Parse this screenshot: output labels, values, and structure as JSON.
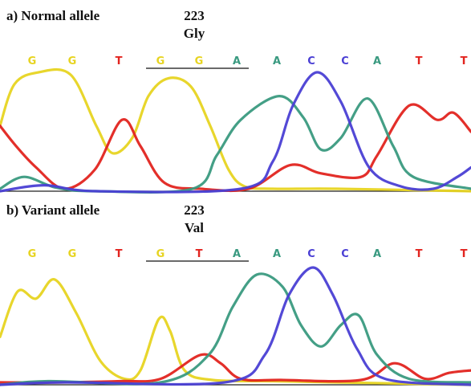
{
  "chart_data": [
    {
      "type": "line",
      "title": "a) Normal allele",
      "codon_position": "223",
      "amino_acid": "Gly",
      "bases": [
        "G",
        "G",
        "T",
        "G",
        "G",
        "A",
        "A",
        "C",
        "C",
        "A",
        "T",
        "T"
      ],
      "underlined_bases": [
        3,
        4
      ],
      "base_colors": {
        "A": "#3a9a80",
        "C": "#4a3fd4",
        "G": "#e7d421",
        "T": "#e2241f"
      },
      "series": [
        {
          "base": "G",
          "color": "#e7d421",
          "values": [
            [
              0,
              0.55
            ],
            [
              18,
              0.9
            ],
            [
              48,
              1.0
            ],
            [
              88,
              0.98
            ],
            [
              120,
              0.55
            ],
            [
              140,
              0.32
            ],
            [
              165,
              0.45
            ],
            [
              185,
              0.8
            ],
            [
              210,
              0.95
            ],
            [
              238,
              0.88
            ],
            [
              262,
              0.55
            ],
            [
              285,
              0.18
            ],
            [
              305,
              0.04
            ],
            [
              340,
              0.02
            ],
            [
              420,
              0.02
            ],
            [
              587,
              0.0
            ]
          ]
        },
        {
          "base": "T",
          "color": "#e2241f",
          "values": [
            [
              0,
              0.55
            ],
            [
              20,
              0.38
            ],
            [
              45,
              0.2
            ],
            [
              80,
              0.02
            ],
            [
              118,
              0.18
            ],
            [
              152,
              0.6
            ],
            [
              175,
              0.38
            ],
            [
              205,
              0.07
            ],
            [
              250,
              0.02
            ],
            [
              310,
              0.02
            ],
            [
              362,
              0.22
            ],
            [
              400,
              0.15
            ],
            [
              450,
              0.12
            ],
            [
              470,
              0.3
            ],
            [
              510,
              0.72
            ],
            [
              545,
              0.6
            ],
            [
              565,
              0.66
            ],
            [
              587,
              0.5
            ]
          ]
        },
        {
          "base": "A",
          "color": "#3a9a80",
          "values": [
            [
              0,
              0.02
            ],
            [
              30,
              0.12
            ],
            [
              70,
              0.03
            ],
            [
              120,
              0.0
            ],
            [
              240,
              0.02
            ],
            [
              270,
              0.3
            ],
            [
              300,
              0.6
            ],
            [
              348,
              0.8
            ],
            [
              378,
              0.62
            ],
            [
              400,
              0.35
            ],
            [
              425,
              0.45
            ],
            [
              458,
              0.78
            ],
            [
              490,
              0.38
            ],
            [
              515,
              0.12
            ],
            [
              587,
              0.02
            ]
          ]
        },
        {
          "base": "C",
          "color": "#4a3fd4",
          "values": [
            [
              0,
              0.0
            ],
            [
              55,
              0.05
            ],
            [
              120,
              0.0
            ],
            [
              300,
              0.02
            ],
            [
              340,
              0.25
            ],
            [
              365,
              0.72
            ],
            [
              395,
              1.0
            ],
            [
              425,
              0.75
            ],
            [
              460,
              0.2
            ],
            [
              500,
              0.04
            ],
            [
              540,
              0.02
            ],
            [
              570,
              0.12
            ],
            [
              587,
              0.2
            ]
          ]
        }
      ]
    },
    {
      "type": "line",
      "title": "b) Variant allele",
      "codon_position": "223",
      "amino_acid": "Val",
      "bases": [
        "G",
        "G",
        "T",
        "G",
        "T",
        "A",
        "A",
        "C",
        "C",
        "A",
        "T",
        "T"
      ],
      "underlined_bases": [
        3,
        4
      ],
      "base_colors": {
        "A": "#3a9a80",
        "C": "#4a3fd4",
        "G": "#e7d421",
        "T": "#e2241f"
      },
      "series": [
        {
          "base": "G",
          "color": "#e7d421",
          "values": [
            [
              0,
              0.4
            ],
            [
              22,
              0.78
            ],
            [
              45,
              0.72
            ],
            [
              68,
              0.88
            ],
            [
              95,
              0.6
            ],
            [
              125,
              0.2
            ],
            [
              155,
              0.05
            ],
            [
              175,
              0.12
            ],
            [
              198,
              0.55
            ],
            [
              212,
              0.45
            ],
            [
              230,
              0.12
            ],
            [
              265,
              0.04
            ],
            [
              340,
              0.03
            ],
            [
              420,
              0.02
            ],
            [
              587,
              0.0
            ]
          ]
        },
        {
          "base": "T",
          "color": "#e2241f",
          "values": [
            [
              0,
              0.02
            ],
            [
              70,
              0.02
            ],
            [
              150,
              0.03
            ],
            [
              200,
              0.05
            ],
            [
              250,
              0.25
            ],
            [
              275,
              0.18
            ],
            [
              300,
              0.05
            ],
            [
              350,
              0.04
            ],
            [
              450,
              0.04
            ],
            [
              492,
              0.18
            ],
            [
              530,
              0.05
            ],
            [
              560,
              0.1
            ],
            [
              587,
              0.12
            ]
          ]
        },
        {
          "base": "A",
          "color": "#3a9a80",
          "values": [
            [
              0,
              0.0
            ],
            [
              60,
              0.03
            ],
            [
              200,
              0.02
            ],
            [
              260,
              0.25
            ],
            [
              290,
              0.65
            ],
            [
              320,
              0.92
            ],
            [
              352,
              0.82
            ],
            [
              375,
              0.5
            ],
            [
              400,
              0.32
            ],
            [
              425,
              0.5
            ],
            [
              447,
              0.58
            ],
            [
              470,
              0.25
            ],
            [
              510,
              0.05
            ],
            [
              587,
              0.02
            ]
          ]
        },
        {
          "base": "C",
          "color": "#4a3fd4",
          "values": [
            [
              0,
              0.0
            ],
            [
              80,
              0.02
            ],
            [
              280,
              0.02
            ],
            [
              330,
              0.25
            ],
            [
              360,
              0.75
            ],
            [
              390,
              0.98
            ],
            [
              415,
              0.75
            ],
            [
              445,
              0.3
            ],
            [
              480,
              0.05
            ],
            [
              587,
              0.0
            ]
          ]
        }
      ]
    }
  ]
}
